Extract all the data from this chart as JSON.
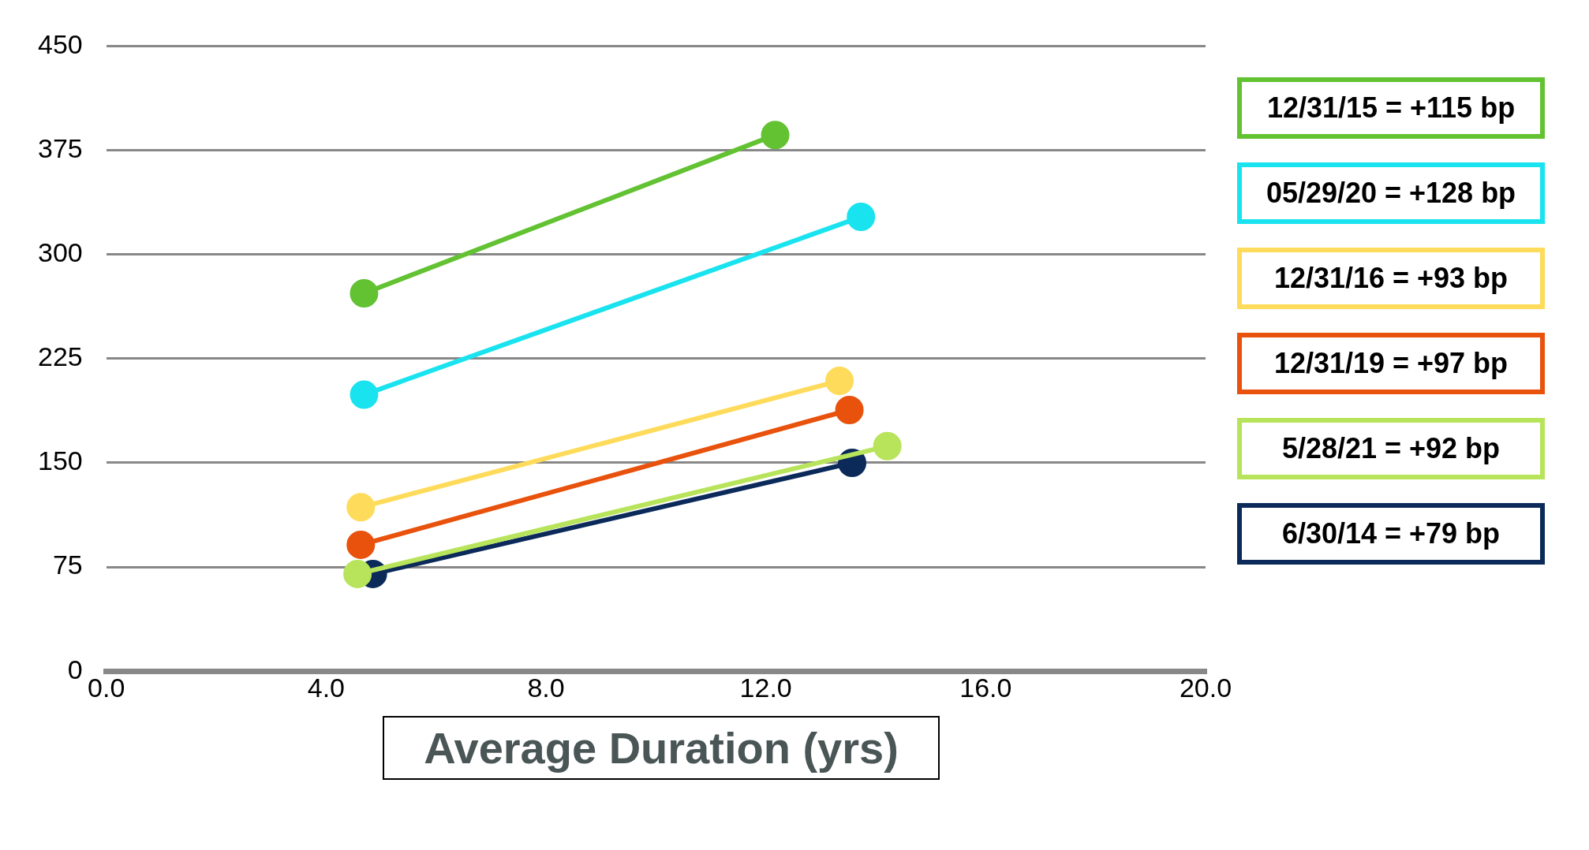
{
  "chart_data": {
    "type": "line",
    "xlabel": "Average Duration (yrs)",
    "xlim": [
      0,
      20
    ],
    "xticks": [
      {
        "value": 0,
        "label": "0.0"
      },
      {
        "value": 4,
        "label": "4.0"
      },
      {
        "value": 8,
        "label": "8.0"
      },
      {
        "value": 12,
        "label": "12.0"
      },
      {
        "value": 16,
        "label": "16.0"
      },
      {
        "value": 20,
        "label": "20.0"
      }
    ],
    "ylim": [
      0,
      450
    ],
    "yticks": [
      0,
      75,
      150,
      225,
      300,
      375,
      450
    ],
    "grid": "y",
    "legend": "right",
    "marker": "circle",
    "line_style": "solid",
    "series": [
      {
        "name": "12/31/15 = +115 bp",
        "color": "#62c232",
        "x": [
          4.69,
          12.17
        ],
        "values": [
          272,
          386
        ]
      },
      {
        "name": "05/29/20 = +128 bp",
        "color": "#19e3ef",
        "x": [
          4.69,
          13.73
        ],
        "values": [
          199,
          327
        ]
      },
      {
        "name": "12/31/16 = +93 bp",
        "color": "#fedb5a",
        "x": [
          4.63,
          13.34
        ],
        "values": [
          118,
          209
        ]
      },
      {
        "name": "12/31/19 = +97 bp",
        "color": "#e8520c",
        "x": [
          4.63,
          13.52
        ],
        "values": [
          91,
          188
        ]
      },
      {
        "name": "5/28/21 = +92 bp",
        "color": "#b7e45a",
        "x": [
          4.57,
          14.21
        ],
        "values": [
          70,
          162
        ]
      },
      {
        "name": "6/30/14 = +79 bp",
        "color": "#0b2a5a",
        "x": [
          4.85,
          13.57
        ],
        "values": [
          70,
          150
        ]
      }
    ]
  }
}
